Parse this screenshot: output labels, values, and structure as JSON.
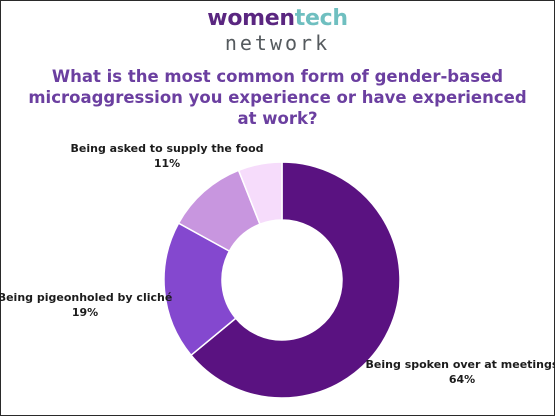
{
  "logo": {
    "word_women": "women",
    "word_tech": "tech",
    "word_network": "network",
    "colors": {
      "women": "#5a2680",
      "tech": "#6fbfc0",
      "network": "#555a5e"
    }
  },
  "chart_data": {
    "type": "pie",
    "title": "What is the most common form of gender-based microaggression you experience or have experienced at work?",
    "donut": true,
    "slices": [
      {
        "label": "Being spoken over at meetings",
        "value": 64,
        "value_label": "64%",
        "color": "#5a1281"
      },
      {
        "label": "Being pigeonholed by cliché",
        "value": 19,
        "value_label": "19%",
        "color": "#8448cf"
      },
      {
        "label": "Being asked to supply the food",
        "value": 11,
        "value_label": "11%",
        "color": "#c896df"
      },
      {
        "label": "",
        "value": 6,
        "value_label": "",
        "color": "#f6dcfb"
      }
    ]
  }
}
